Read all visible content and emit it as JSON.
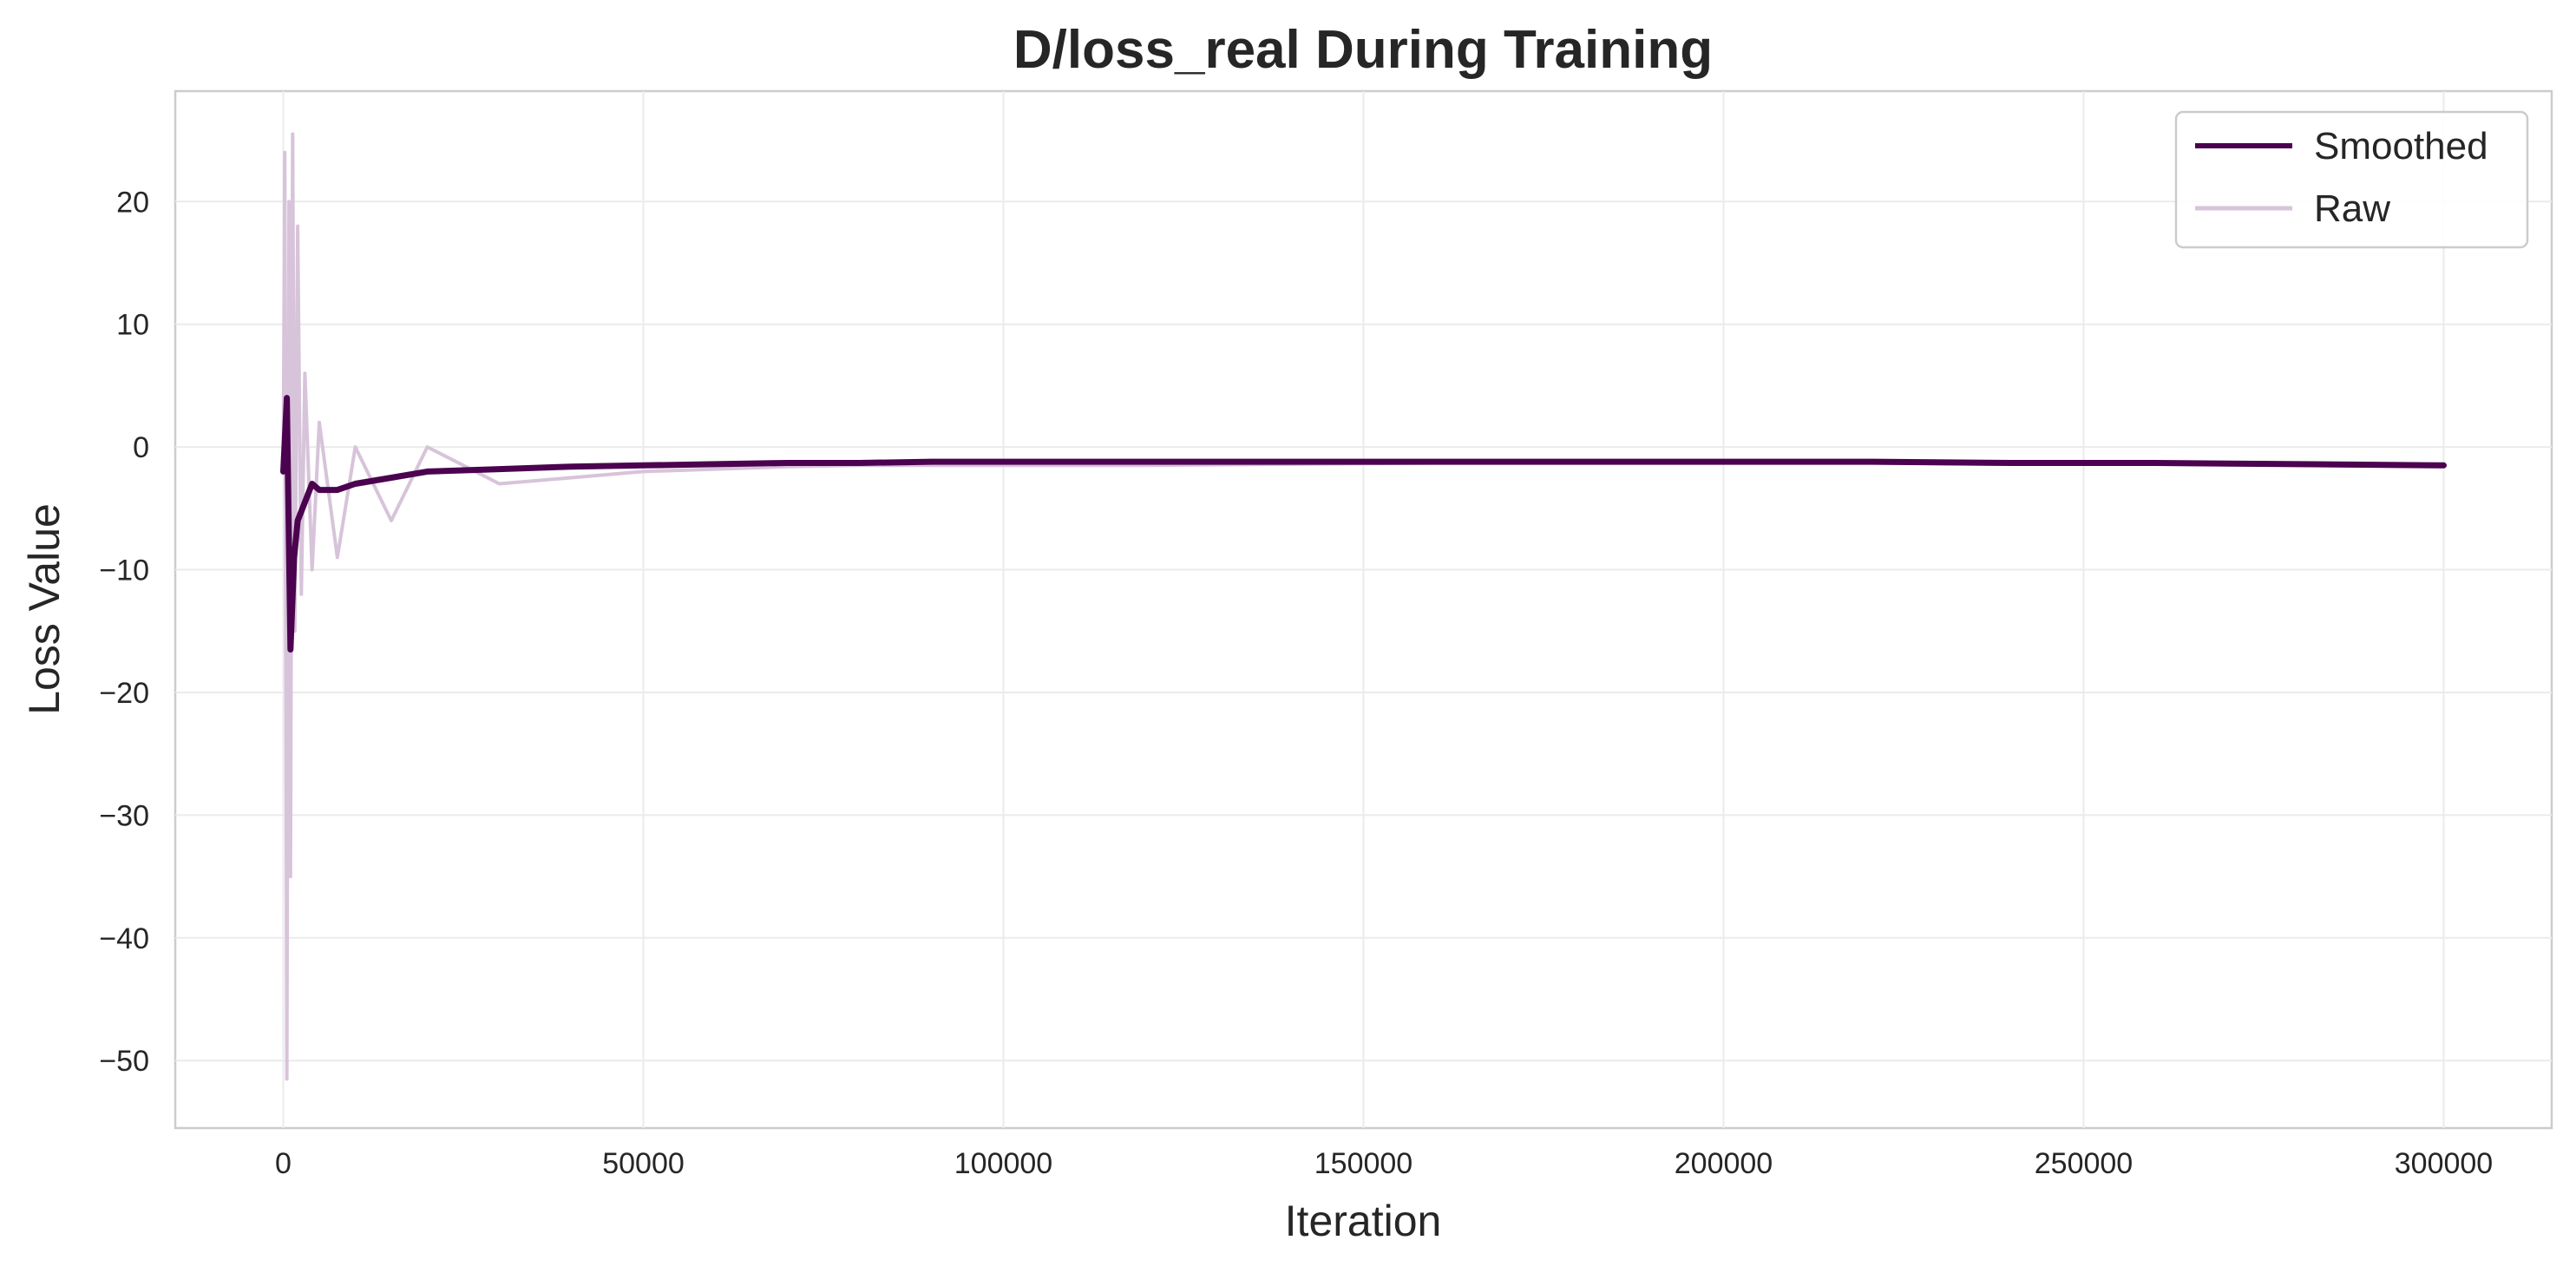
{
  "chart_data": {
    "type": "line",
    "title": "D/loss_real During Training",
    "xlabel": "Iteration",
    "ylabel": "Loss Value",
    "xlim": [
      -15000,
      315000
    ],
    "ylim": [
      -55.5,
      29
    ],
    "xticks": [
      0,
      50000,
      100000,
      150000,
      200000,
      250000,
      300000
    ],
    "xtick_labels": [
      "0",
      "50000",
      "100000",
      "150000",
      "200000",
      "250000",
      "300000"
    ],
    "yticks": [
      20,
      10,
      0,
      -10,
      -20,
      -30,
      -40,
      -50
    ],
    "ytick_labels": [
      "20",
      "10",
      "0",
      "−10",
      "−20",
      "−30",
      "−40",
      "−50"
    ],
    "grid": true,
    "legend_position": "top-right",
    "series": [
      {
        "name": "Smoothed",
        "color": "#4b0350",
        "x": [
          0,
          500,
          1000,
          1500,
          2000,
          3000,
          4000,
          5000,
          7500,
          10000,
          15000,
          20000,
          30000,
          40000,
          50000,
          60000,
          70000,
          80000,
          90000,
          100000,
          120000,
          140000,
          160000,
          180000,
          200000,
          220000,
          240000,
          260000,
          280000,
          300000
        ],
        "y": [
          -2.0,
          4.0,
          -16.5,
          -9.0,
          -6.0,
          -4.5,
          -3.0,
          -3.5,
          -3.5,
          -3.0,
          -2.5,
          -2.0,
          -1.8,
          -1.6,
          -1.5,
          -1.4,
          -1.3,
          -1.3,
          -1.2,
          -1.2,
          -1.2,
          -1.2,
          -1.2,
          -1.2,
          -1.2,
          -1.2,
          -1.3,
          -1.3,
          -1.4,
          -1.5
        ]
      },
      {
        "name": "Raw",
        "color": "#d7c3da",
        "x": [
          0,
          200,
          500,
          800,
          1000,
          1300,
          1600,
          2000,
          2500,
          3000,
          4000,
          5000,
          7500,
          10000,
          15000,
          20000,
          30000,
          40000,
          50000,
          60000,
          70000,
          80000,
          100000,
          120000,
          140000,
          160000,
          180000,
          200000,
          220000,
          240000,
          260000,
          280000,
          300000
        ],
        "y": [
          -2,
          24,
          -51.5,
          20,
          -35,
          25.5,
          -15,
          18,
          -12,
          6,
          -10,
          2,
          -9,
          0,
          -6,
          0,
          -3,
          -2.5,
          -2,
          -1.8,
          -1.6,
          -1.5,
          -1.5,
          -1.5,
          -1.4,
          -1.3,
          -1.3,
          -1.3,
          -1.3,
          -1.4,
          -1.4,
          -1.5,
          -1.6
        ]
      }
    ]
  }
}
